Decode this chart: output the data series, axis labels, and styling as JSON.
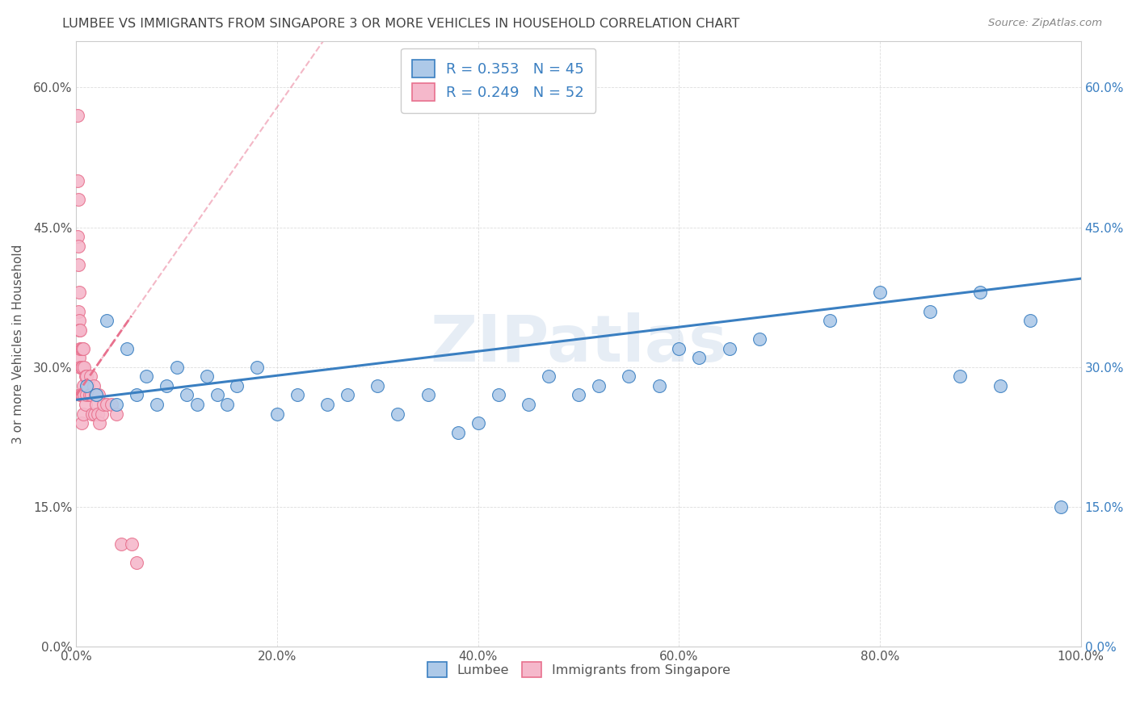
{
  "title": "LUMBEE VS IMMIGRANTS FROM SINGAPORE 3 OR MORE VEHICLES IN HOUSEHOLD CORRELATION CHART",
  "source": "Source: ZipAtlas.com",
  "ylabel": "3 or more Vehicles in Household",
  "xlim": [
    0.0,
    1.0
  ],
  "ylim": [
    0.0,
    0.65
  ],
  "xticks": [
    0.0,
    0.2,
    0.4,
    0.6,
    0.8,
    1.0
  ],
  "xtick_labels": [
    "0.0%",
    "20.0%",
    "40.0%",
    "60.0%",
    "80.0%",
    "100.0%"
  ],
  "yticks": [
    0.0,
    0.15,
    0.3,
    0.45,
    0.6
  ],
  "ytick_labels": [
    "0.0%",
    "15.0%",
    "30.0%",
    "45.0%",
    "60.0%"
  ],
  "lumbee_R": 0.353,
  "lumbee_N": 45,
  "singapore_R": 0.249,
  "singapore_N": 52,
  "lumbee_color": "#adc9e8",
  "singapore_color": "#f5b8cb",
  "lumbee_line_color": "#3a7fc1",
  "singapore_line_color": "#e8718e",
  "watermark": "ZIPatlas",
  "lumbee_x": [
    0.01,
    0.02,
    0.03,
    0.04,
    0.05,
    0.06,
    0.07,
    0.08,
    0.09,
    0.1,
    0.11,
    0.12,
    0.13,
    0.14,
    0.15,
    0.16,
    0.18,
    0.2,
    0.22,
    0.25,
    0.27,
    0.3,
    0.32,
    0.35,
    0.38,
    0.4,
    0.42,
    0.45,
    0.47,
    0.5,
    0.52,
    0.55,
    0.58,
    0.6,
    0.62,
    0.65,
    0.68,
    0.75,
    0.8,
    0.85,
    0.88,
    0.9,
    0.92,
    0.95,
    0.98
  ],
  "lumbee_y": [
    0.28,
    0.27,
    0.35,
    0.26,
    0.32,
    0.27,
    0.29,
    0.26,
    0.28,
    0.3,
    0.27,
    0.26,
    0.29,
    0.27,
    0.26,
    0.28,
    0.3,
    0.25,
    0.27,
    0.26,
    0.27,
    0.28,
    0.25,
    0.27,
    0.23,
    0.24,
    0.27,
    0.26,
    0.29,
    0.27,
    0.28,
    0.29,
    0.28,
    0.32,
    0.31,
    0.32,
    0.33,
    0.35,
    0.38,
    0.36,
    0.29,
    0.38,
    0.28,
    0.35,
    0.15
  ],
  "singapore_x": [
    0.001,
    0.001,
    0.001,
    0.002,
    0.002,
    0.002,
    0.002,
    0.003,
    0.003,
    0.003,
    0.003,
    0.004,
    0.004,
    0.004,
    0.004,
    0.005,
    0.005,
    0.005,
    0.005,
    0.006,
    0.006,
    0.006,
    0.007,
    0.007,
    0.007,
    0.008,
    0.008,
    0.009,
    0.009,
    0.01,
    0.01,
    0.011,
    0.012,
    0.013,
    0.014,
    0.015,
    0.016,
    0.017,
    0.018,
    0.019,
    0.02,
    0.021,
    0.022,
    0.023,
    0.025,
    0.027,
    0.03,
    0.035,
    0.04,
    0.045,
    0.055,
    0.06
  ],
  "singapore_y": [
    0.57,
    0.5,
    0.44,
    0.48,
    0.43,
    0.41,
    0.36,
    0.38,
    0.35,
    0.34,
    0.31,
    0.34,
    0.32,
    0.3,
    0.27,
    0.32,
    0.3,
    0.27,
    0.24,
    0.32,
    0.3,
    0.27,
    0.32,
    0.28,
    0.25,
    0.3,
    0.27,
    0.29,
    0.26,
    0.29,
    0.27,
    0.28,
    0.28,
    0.27,
    0.29,
    0.27,
    0.25,
    0.28,
    0.25,
    0.27,
    0.26,
    0.25,
    0.27,
    0.24,
    0.25,
    0.26,
    0.26,
    0.26,
    0.25,
    0.11,
    0.11,
    0.09
  ],
  "lumbee_line_start_x": 0.0,
  "lumbee_line_start_y": 0.265,
  "lumbee_line_end_x": 1.0,
  "lumbee_line_end_y": 0.395,
  "singapore_line_start_x": 0.0,
  "singapore_line_start_y": 0.27,
  "singapore_line_end_x": 0.055,
  "singapore_line_end_y": 0.355
}
